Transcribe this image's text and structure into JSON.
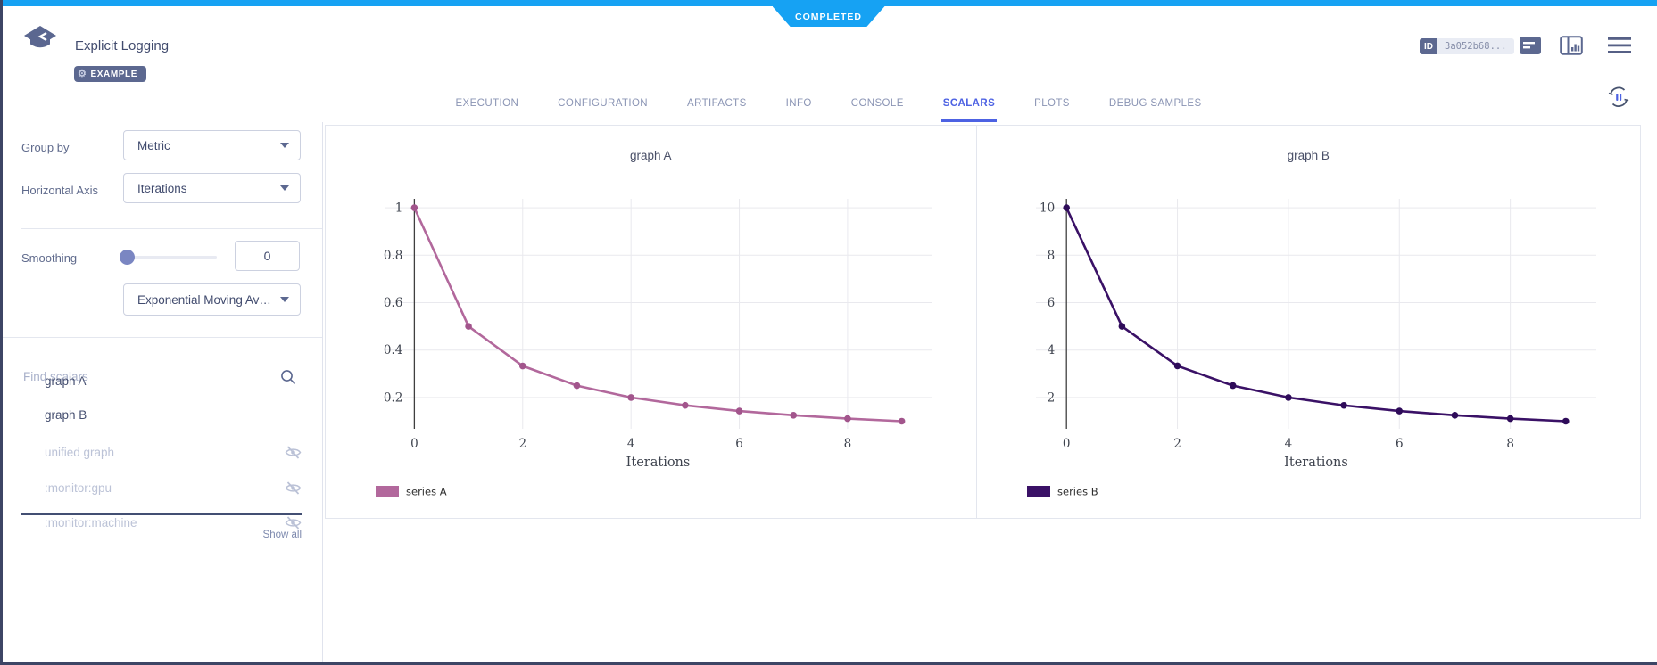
{
  "header": {
    "status": "COMPLETED",
    "title": "Explicit Logging",
    "example_badge": "EXAMPLE",
    "id_label": "ID",
    "id_value": "3a052b68...",
    "tabs": [
      {
        "label": "EXECUTION",
        "active": false
      },
      {
        "label": "CONFIGURATION",
        "active": false
      },
      {
        "label": "ARTIFACTS",
        "active": false
      },
      {
        "label": "INFO",
        "active": false
      },
      {
        "label": "CONSOLE",
        "active": false
      },
      {
        "label": "SCALARS",
        "active": true
      },
      {
        "label": "PLOTS",
        "active": false
      },
      {
        "label": "DEBUG SAMPLES",
        "active": false
      }
    ]
  },
  "sidebar": {
    "group_by_label": "Group by",
    "group_by_value": "Metric",
    "horizontal_axis_label": "Horizontal Axis",
    "horizontal_axis_value": "Iterations",
    "smoothing_label": "Smoothing",
    "smoothing_value": "0",
    "smoothing_type_value": "Exponential Moving Ave...",
    "search_placeholder": "Find scalars",
    "show_all_label": "Show all",
    "scalars": [
      {
        "label": "graph A",
        "visible": true
      },
      {
        "label": "graph B",
        "visible": true
      },
      {
        "label": "unified graph",
        "visible": false
      },
      {
        "label": ":monitor:gpu",
        "visible": false
      },
      {
        "label": ":monitor:machine",
        "visible": false
      }
    ]
  },
  "chart_data": [
    {
      "type": "line",
      "title": "graph A",
      "xlabel": "Iterations",
      "x": [
        0,
        1,
        2,
        3,
        4,
        5,
        6,
        7,
        8,
        9
      ],
      "series": [
        {
          "name": "series A",
          "color": "#b2689c",
          "marker_color": "#a2558c",
          "values": [
            1,
            0.5,
            0.333,
            0.25,
            0.2,
            0.167,
            0.143,
            0.125,
            0.111,
            0.1
          ]
        }
      ],
      "xlim": [
        -0.55,
        9.55
      ],
      "ylim": [
        0.068,
        1.038
      ],
      "xticks": [
        0,
        2,
        4,
        6,
        8
      ],
      "yticks": [
        0.2,
        0.4,
        0.6,
        0.8,
        1
      ],
      "ytick_labels": [
        "0.2",
        "0.4",
        "0.6",
        "0.8",
        "1"
      ],
      "grid": true,
      "legend_position": "bottom-left"
    },
    {
      "type": "line",
      "title": "graph B",
      "xlabel": "Iterations",
      "x": [
        0,
        1,
        2,
        3,
        4,
        5,
        6,
        7,
        8,
        9
      ],
      "series": [
        {
          "name": "series B",
          "color": "#3a1166",
          "marker_color": "#2e0b59",
          "values": [
            10,
            5,
            3.333,
            2.5,
            2,
            1.667,
            1.429,
            1.25,
            1.111,
            1
          ]
        }
      ],
      "xlim": [
        -0.55,
        9.55
      ],
      "ylim": [
        0.68,
        10.38
      ],
      "xticks": [
        0,
        2,
        4,
        6,
        8
      ],
      "yticks": [
        2,
        4,
        6,
        8,
        10
      ],
      "ytick_labels": [
        "2",
        "4",
        "6",
        "8",
        "10"
      ],
      "grid": true,
      "legend_position": "bottom-left"
    }
  ],
  "colors": {
    "accent_blue": "#16a2f3",
    "active_tab": "#4d62e3",
    "slate": "#5c6890",
    "series_a": "#b2689c",
    "series_b": "#3a1166",
    "grid": "#e9e9ee",
    "zero_line": "#3f3f3f"
  }
}
